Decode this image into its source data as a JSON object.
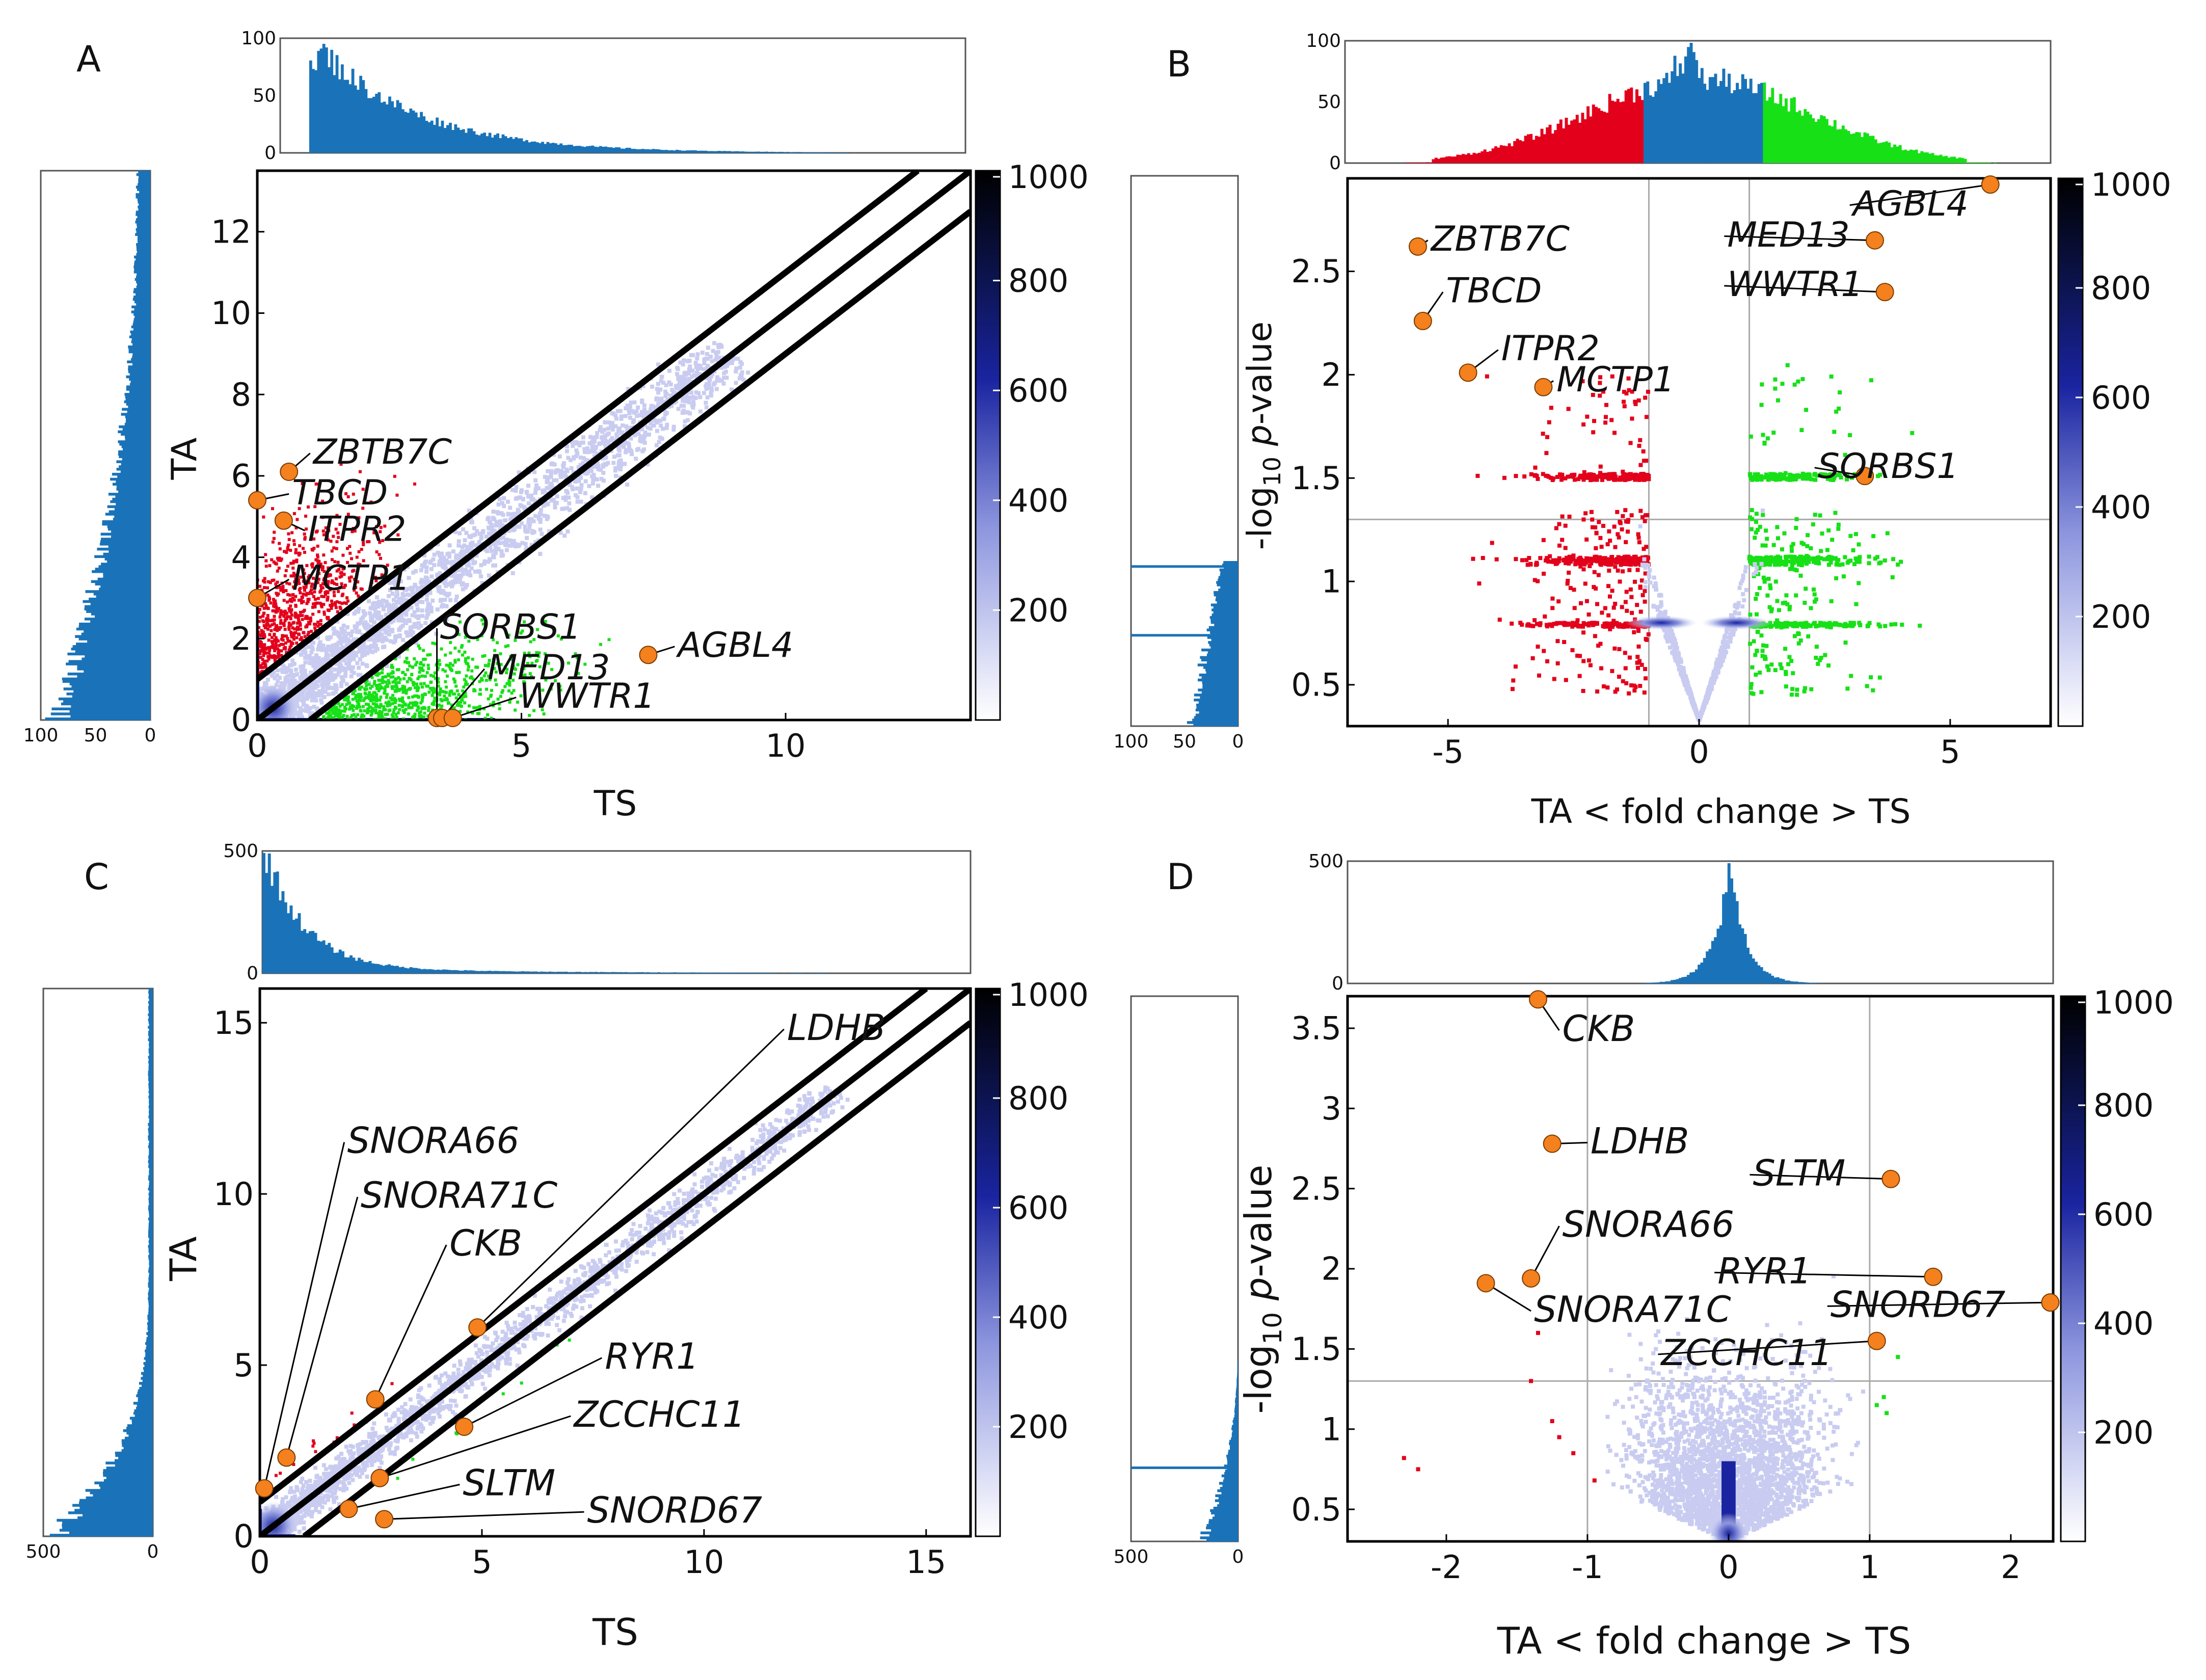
{
  "figure": {
    "panel_letters": [
      "A",
      "B",
      "C",
      "D"
    ]
  },
  "colors": {
    "density_scale": [
      "#ffffff",
      "#d9dcf5",
      "#8d96de",
      "#1a24a0",
      "#0b1248",
      "#000000"
    ],
    "up_in_TA": "#e3001b",
    "up_in_TS": "#17e017",
    "histogram": "#1a73b8",
    "highlight": "#f4801e",
    "guide_line": "#aaaaaa"
  },
  "colorbar": {
    "ticks": [
      "1000",
      "800",
      "600",
      "400",
      "200"
    ],
    "range": [
      0,
      1000
    ]
  },
  "chart_data": [
    {
      "panel": "A",
      "type": "scatter",
      "xlabel": "TS",
      "ylabel": "TA",
      "xlim": [
        0,
        13.5
      ],
      "ylim": [
        0,
        13.5
      ],
      "xticks": [
        "0",
        "5",
        "10"
      ],
      "yticks": [
        "0",
        "2",
        "4",
        "6",
        "8",
        "10",
        "12"
      ],
      "diagonal_offsets": [
        -1,
        0,
        1
      ],
      "top_hist_ticks": [
        "0",
        "50",
        "100"
      ],
      "top_hist_ylim": [
        0,
        100
      ],
      "side_hist_ticks": [
        "100",
        "50",
        "0"
      ],
      "highlights": [
        {
          "label": "ZBTB7C",
          "x": 0.6,
          "y": 6.1,
          "label_x": 1.0,
          "label_y": 6.3
        },
        {
          "label": "TBCD",
          "x": 0.0,
          "y": 5.4,
          "label_x": 0.6,
          "label_y": 5.3
        },
        {
          "label": "ITPR2",
          "x": 0.5,
          "y": 4.9,
          "label_x": 0.9,
          "label_y": 4.4
        },
        {
          "label": "MCTP1",
          "x": 0.0,
          "y": 3.0,
          "label_x": 0.6,
          "label_y": 3.2
        },
        {
          "label": "SORBS1",
          "x": 3.4,
          "y": 0.05,
          "label_x": 3.4,
          "label_y": 2.0
        },
        {
          "label": "MED13",
          "x": 3.5,
          "y": 0.05,
          "label_x": 4.3,
          "label_y": 1.0
        },
        {
          "label": "WWTR1",
          "x": 3.7,
          "y": 0.05,
          "label_x": 4.9,
          "label_y": 0.3
        },
        {
          "label": "AGBL4",
          "x": 7.4,
          "y": 1.6,
          "label_x": 7.9,
          "label_y": 1.55
        }
      ]
    },
    {
      "panel": "B",
      "type": "scatter",
      "xlabel": "TA < fold change > TS",
      "ylabel": "-log10 p-value",
      "ylabel_parts": {
        "pre": "-log",
        "sub": "10",
        "mid": " ",
        "italic": "p",
        "post": "-value"
      },
      "xlim": [
        -7,
        7
      ],
      "ylim": [
        0.3,
        2.95
      ],
      "xticks": [
        "-5",
        "0",
        "5"
      ],
      "yticks": [
        "0.5",
        "1",
        "1.5",
        "2",
        "2.5"
      ],
      "guide_x": [
        -1,
        1
      ],
      "guide_y": 1.3,
      "top_hist_ticks": [
        "0",
        "50",
        "100"
      ],
      "top_hist_ylim": [
        0,
        100
      ],
      "side_hist_ticks": [
        "100",
        "50",
        "0"
      ],
      "highlights": [
        {
          "label": "ZBTB7C",
          "x": -5.6,
          "y": 2.62,
          "label_x": -5.4,
          "label_y": 2.6
        },
        {
          "label": "TBCD",
          "x": -5.5,
          "y": 2.26,
          "label_x": -5.1,
          "label_y": 2.35
        },
        {
          "label": "ITPR2",
          "x": -4.6,
          "y": 2.01,
          "label_x": -4.0,
          "label_y": 2.07
        },
        {
          "label": "MCTP1",
          "x": -3.1,
          "y": 1.94,
          "label_x": -2.9,
          "label_y": 1.92
        },
        {
          "label": "SORBS1",
          "x": 3.3,
          "y": 1.51,
          "label_x": 2.3,
          "label_y": 1.5
        },
        {
          "label": "AGBL4",
          "x": 5.8,
          "y": 2.92,
          "label_x": 3.0,
          "label_y": 2.77
        },
        {
          "label": "MED13",
          "x": 3.5,
          "y": 2.65,
          "label_x": 0.5,
          "label_y": 2.62
        },
        {
          "label": "WWTR1",
          "x": 3.7,
          "y": 2.4,
          "label_x": 0.5,
          "label_y": 2.38
        }
      ]
    },
    {
      "panel": "C",
      "type": "scatter",
      "xlabel": "TS",
      "ylabel": "TA",
      "xlim": [
        0,
        16
      ],
      "ylim": [
        0,
        16
      ],
      "xticks": [
        "0",
        "5",
        "10",
        "15"
      ],
      "yticks": [
        "0",
        "5",
        "10",
        "15"
      ],
      "diagonal_offsets": [
        -1,
        0,
        1
      ],
      "top_hist_ticks": [
        "0",
        "500"
      ],
      "top_hist_ylim": [
        0,
        500
      ],
      "side_hist_ticks": [
        "500",
        "0"
      ],
      "highlights": [
        {
          "label": "LDHB",
          "x": 4.9,
          "y": 6.1,
          "label_x": 11.8,
          "label_y": 14.5
        },
        {
          "label": "SNORA66",
          "x": 0.1,
          "y": 1.4,
          "label_x": 1.9,
          "label_y": 11.2
        },
        {
          "label": "SNORA71C",
          "x": 0.6,
          "y": 2.3,
          "label_x": 2.2,
          "label_y": 9.6
        },
        {
          "label": "CKB",
          "x": 2.6,
          "y": 4.0,
          "label_x": 4.2,
          "label_y": 8.2
        },
        {
          "label": "RYR1",
          "x": 4.6,
          "y": 3.2,
          "label_x": 7.7,
          "label_y": 4.9
        },
        {
          "label": "ZCCHC11",
          "x": 2.7,
          "y": 1.7,
          "label_x": 7.0,
          "label_y": 3.2
        },
        {
          "label": "SLTM",
          "x": 2.0,
          "y": 0.8,
          "label_x": 4.5,
          "label_y": 1.2
        },
        {
          "label": "SNORD67",
          "x": 2.8,
          "y": 0.5,
          "label_x": 7.3,
          "label_y": 0.4
        }
      ]
    },
    {
      "panel": "D",
      "type": "scatter",
      "xlabel": "TA < fold change > TS",
      "ylabel": "-log10 p-value",
      "ylabel_parts": {
        "pre": "-log",
        "sub": "10",
        "mid": " ",
        "italic": "p",
        "post": "-value"
      },
      "xlim": [
        -2.7,
        2.3
      ],
      "ylim": [
        0.3,
        3.7
      ],
      "xticks": [
        "-2",
        "-1",
        "0",
        "1",
        "2"
      ],
      "yticks": [
        "0.5",
        "1",
        "1.5",
        "2",
        "2.5",
        "3",
        "3.5"
      ],
      "guide_x": [
        -1,
        1
      ],
      "guide_y": 1.3,
      "top_hist_ticks": [
        "0",
        "500"
      ],
      "top_hist_ylim": [
        0,
        500
      ],
      "side_hist_ticks": [
        "500",
        "0"
      ],
      "highlights": [
        {
          "label": "CKB",
          "x": -1.35,
          "y": 3.68,
          "label_x": -1.2,
          "label_y": 3.42
        },
        {
          "label": "LDHB",
          "x": -1.25,
          "y": 2.78,
          "label_x": -1.0,
          "label_y": 2.72
        },
        {
          "label": "SLTM",
          "x": 1.15,
          "y": 2.56,
          "label_x": 0.15,
          "label_y": 2.52
        },
        {
          "label": "SNORA66",
          "x": -1.4,
          "y": 1.94,
          "label_x": -1.2,
          "label_y": 2.2
        },
        {
          "label": "SNORA71C",
          "x": -1.72,
          "y": 1.91,
          "label_x": -1.4,
          "label_y": 1.67
        },
        {
          "label": "RYR1",
          "x": 1.45,
          "y": 1.95,
          "label_x": -0.1,
          "label_y": 1.91
        },
        {
          "label": "SNORD67",
          "x": 2.28,
          "y": 1.79,
          "label_x": 0.7,
          "label_y": 1.7
        },
        {
          "label": "ZCCHC11",
          "x": 1.05,
          "y": 1.55,
          "label_x": -0.5,
          "label_y": 1.4
        }
      ]
    }
  ]
}
